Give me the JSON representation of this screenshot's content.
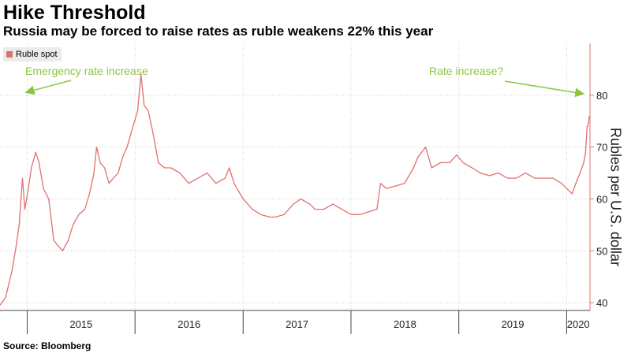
{
  "chart_data": {
    "type": "line",
    "title": "Hike Threshold",
    "subtitle": "Russia may be forced to raise rates as ruble weakens 22% this year",
    "ylabel": "Rubles per U.S. dollar",
    "ylim": [
      38.5,
      90
    ],
    "y_ticks": [
      40,
      50,
      60,
      70,
      80
    ],
    "x_ticks": [
      "2015",
      "2016",
      "2017",
      "2018",
      "2019",
      "2020"
    ],
    "xlim": [
      "2014-10-01",
      "2020-03-20"
    ],
    "grid": true,
    "legend": "top-left",
    "series": [
      {
        "name": "Ruble spot",
        "color": "#e07070",
        "x": [
          "2014-10-01",
          "2014-10-20",
          "2014-11-10",
          "2014-11-25",
          "2014-12-05",
          "2014-12-16",
          "2014-12-24",
          "2015-01-05",
          "2015-01-15",
          "2015-01-30",
          "2015-02-10",
          "2015-02-25",
          "2015-03-15",
          "2015-04-01",
          "2015-04-15",
          "2015-05-01",
          "2015-05-20",
          "2015-06-05",
          "2015-06-25",
          "2015-07-15",
          "2015-07-31",
          "2015-08-15",
          "2015-08-24",
          "2015-09-05",
          "2015-09-20",
          "2015-10-05",
          "2015-10-20",
          "2015-11-05",
          "2015-11-20",
          "2015-12-05",
          "2015-12-20",
          "2016-01-10",
          "2016-01-21",
          "2016-02-01",
          "2016-02-15",
          "2016-03-01",
          "2016-03-20",
          "2016-04-10",
          "2016-05-01",
          "2016-06-01",
          "2016-07-01",
          "2016-08-01",
          "2016-09-01",
          "2016-10-01",
          "2016-11-01",
          "2016-11-15",
          "2016-12-01",
          "2017-01-01",
          "2017-02-01",
          "2017-03-01",
          "2017-04-01",
          "2017-04-20",
          "2017-05-20",
          "2017-06-20",
          "2017-07-15",
          "2017-08-15",
          "2017-09-01",
          "2017-10-01",
          "2017-11-01",
          "2017-12-01",
          "2018-01-01",
          "2018-02-01",
          "2018-03-01",
          "2018-03-30",
          "2018-04-11",
          "2018-05-01",
          "2018-06-01",
          "2018-07-01",
          "2018-08-01",
          "2018-08-15",
          "2018-09-11",
          "2018-10-01",
          "2018-11-01",
          "2018-12-01",
          "2018-12-25",
          "2019-01-15",
          "2019-02-15",
          "2019-03-15",
          "2019-04-15",
          "2019-05-15",
          "2019-06-15",
          "2019-07-15",
          "2019-08-15",
          "2019-09-15",
          "2019-10-15",
          "2019-11-15",
          "2019-12-15",
          "2020-01-10",
          "2020-01-20",
          "2020-02-01",
          "2020-02-15",
          "2020-02-28",
          "2020-03-05",
          "2020-03-10",
          "2020-03-13",
          "2020-03-18"
        ],
        "values": [
          39.5,
          41,
          46,
          51,
          55,
          64,
          58,
          62,
          66,
          69,
          67,
          62,
          60,
          52,
          51,
          50,
          52,
          55,
          57,
          58,
          61,
          65,
          70,
          67,
          66,
          63,
          64,
          65,
          68,
          70,
          73,
          77,
          84,
          78,
          77,
          73,
          67,
          66,
          66,
          65,
          63,
          64,
          65,
          63,
          64,
          66,
          63,
          60,
          58,
          57,
          56.5,
          56.5,
          57,
          59,
          60,
          59,
          58,
          58,
          59,
          58,
          57,
          57,
          57.5,
          58,
          63,
          62,
          62.5,
          63,
          66,
          68,
          70,
          66,
          67,
          67,
          68.5,
          67,
          66,
          65,
          64.5,
          65,
          64,
          64,
          65,
          64,
          64,
          64,
          63,
          61.5,
          61,
          63,
          65,
          67,
          69,
          74,
          74,
          76
        ]
      }
    ],
    "annotations": [
      {
        "text": "Emergency rate increase",
        "x": "2014-12-16",
        "y": 80
      },
      {
        "text": "Rate increase?",
        "x": "2020-03-10",
        "y": 80
      }
    ],
    "source": "Source: Bloomberg"
  }
}
